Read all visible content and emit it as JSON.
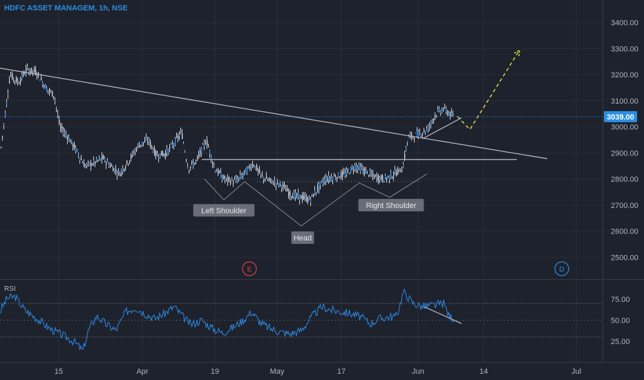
{
  "header": {
    "title": "HDFC ASSET MANAGEM, 1h, NSE"
  },
  "colors": {
    "background": "#1e222d",
    "grid": "#2a2e39",
    "candle": "#2e8be6",
    "wick": "#d1d4dc",
    "trendline": "#b2b5be",
    "projection": "#e7e04a",
    "price_line": "#2b8fe3",
    "earnings": "#d6414a",
    "dividend": "#2e8be6",
    "label_bg": "#6a6d78"
  },
  "chart_data": [
    {
      "type": "candlestick",
      "title": "HDFC ASSET MANAGEM, 1h, NSE",
      "x_ticks": [
        "15",
        "Apr",
        "19",
        "May",
        "17",
        "Jun",
        "14",
        "Jul"
      ],
      "y_ticks": [
        "3400.00",
        "3300.00",
        "3200.00",
        "3100.00",
        "3000.00",
        "2900.00",
        "2800.00",
        "2700.00",
        "2600.00",
        "2500.00"
      ],
      "ylim": [
        2440,
        3460
      ],
      "last_price": {
        "value": 3039,
        "label": "3039.00"
      },
      "price_path": [
        [
          0,
          2900
        ],
        [
          14,
          3200
        ],
        [
          26,
          3170
        ],
        [
          38,
          3220
        ],
        [
          52,
          3210
        ],
        [
          66,
          3150
        ],
        [
          78,
          3120
        ],
        [
          86,
          3000
        ],
        [
          98,
          2960
        ],
        [
          110,
          2910
        ],
        [
          122,
          2850
        ],
        [
          134,
          2860
        ],
        [
          148,
          2880
        ],
        [
          160,
          2850
        ],
        [
          172,
          2820
        ],
        [
          186,
          2870
        ],
        [
          200,
          2930
        ],
        [
          214,
          2950
        ],
        [
          226,
          2890
        ],
        [
          240,
          2900
        ],
        [
          252,
          2940
        ],
        [
          262,
          2980
        ],
        [
          272,
          2840
        ],
        [
          284,
          2870
        ],
        [
          298,
          2950
        ],
        [
          310,
          2840
        ],
        [
          324,
          2800
        ],
        [
          340,
          2790
        ],
        [
          356,
          2830
        ],
        [
          366,
          2860
        ],
        [
          378,
          2810
        ],
        [
          392,
          2790
        ],
        [
          406,
          2780
        ],
        [
          420,
          2740
        ],
        [
          436,
          2730
        ],
        [
          448,
          2720
        ],
        [
          458,
          2760
        ],
        [
          470,
          2800
        ],
        [
          486,
          2810
        ],
        [
          500,
          2820
        ],
        [
          514,
          2850
        ],
        [
          528,
          2830
        ],
        [
          540,
          2810
        ],
        [
          556,
          2800
        ],
        [
          570,
          2820
        ],
        [
          582,
          2840
        ],
        [
          590,
          2960
        ],
        [
          604,
          2970
        ],
        [
          618,
          2990
        ],
        [
          630,
          3050
        ],
        [
          642,
          3070
        ],
        [
          654,
          3040
        ]
      ],
      "trendlines": [
        {
          "from": [
            0,
            3225
          ],
          "to": [
            792,
            2878
          ]
        },
        {
          "from": [
            292,
            2875
          ],
          "to": [
            748,
            2875
          ]
        },
        {
          "from": [
            612,
            2955
          ],
          "to": [
            668,
            3035
          ]
        }
      ],
      "pattern_lines": [
        [
          [
            296,
            2800
          ],
          [
            324,
            2720
          ],
          [
            354,
            2790
          ],
          [
            436,
            2620
          ],
          [
            520,
            2785
          ],
          [
            564,
            2730
          ],
          [
            618,
            2820
          ]
        ]
      ],
      "neckline_dotted": {
        "from": [
          372,
          2790
        ],
        "to": [
          612,
          2790
        ]
      },
      "projection": [
        [
          662,
          3040
        ],
        [
          680,
          2990
        ],
        [
          752,
          3295
        ]
      ],
      "annotations": [
        {
          "text": "Left Shoulder",
          "x": 324,
          "y": 2680
        },
        {
          "text": "Head",
          "x": 438,
          "y": 2575
        },
        {
          "text": "Right Shoulder",
          "x": 566,
          "y": 2700
        }
      ],
      "events": [
        {
          "label": "E",
          "x": 361,
          "kind": "earnings"
        },
        {
          "label": "D",
          "x": 813,
          "kind": "dividend"
        }
      ]
    },
    {
      "type": "line",
      "name": "RSI",
      "y_ticks": [
        "75.00",
        "50.00",
        "25.00"
      ],
      "ylim": [
        5,
        95
      ],
      "bands": [
        70,
        50,
        30
      ],
      "values_path": [
        [
          0,
          60
        ],
        [
          10,
          76
        ],
        [
          22,
          78
        ],
        [
          36,
          62
        ],
        [
          48,
          55
        ],
        [
          60,
          48
        ],
        [
          72,
          40
        ],
        [
          84,
          35
        ],
        [
          96,
          30
        ],
        [
          108,
          24
        ],
        [
          120,
          14
        ],
        [
          128,
          38
        ],
        [
          140,
          55
        ],
        [
          154,
          45
        ],
        [
          168,
          38
        ],
        [
          182,
          60
        ],
        [
          196,
          65
        ],
        [
          210,
          58
        ],
        [
          224,
          52
        ],
        [
          238,
          58
        ],
        [
          252,
          66
        ],
        [
          264,
          55
        ],
        [
          276,
          45
        ],
        [
          292,
          50
        ],
        [
          308,
          40
        ],
        [
          322,
          35
        ],
        [
          338,
          42
        ],
        [
          352,
          50
        ],
        [
          364,
          60
        ],
        [
          378,
          46
        ],
        [
          392,
          40
        ],
        [
          406,
          36
        ],
        [
          420,
          34
        ],
        [
          436,
          38
        ],
        [
          452,
          55
        ],
        [
          466,
          66
        ],
        [
          480,
          62
        ],
        [
          494,
          60
        ],
        [
          508,
          58
        ],
        [
          522,
          54
        ],
        [
          536,
          46
        ],
        [
          550,
          52
        ],
        [
          562,
          54
        ],
        [
          574,
          55
        ],
        [
          584,
          84
        ],
        [
          598,
          70
        ],
        [
          612,
          66
        ],
        [
          628,
          68
        ],
        [
          642,
          70
        ],
        [
          650,
          55
        ],
        [
          658,
          52
        ]
      ],
      "divergence_line": {
        "from": [
          614,
          66
        ],
        "to": [
          668,
          46
        ]
      }
    }
  ]
}
